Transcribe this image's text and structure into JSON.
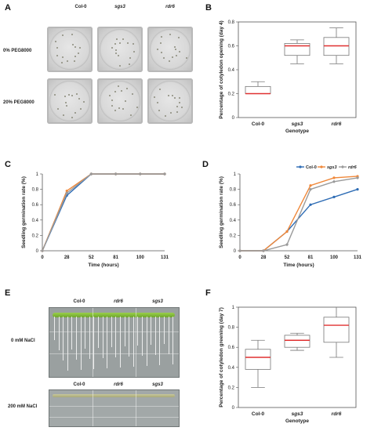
{
  "panels": {
    "A": {
      "letter": "A",
      "col_labels": [
        "Col-0",
        "sgs3",
        "rdr6"
      ],
      "row_labels": [
        "0% PEG8000",
        "20% PEG8000"
      ]
    },
    "B": {
      "letter": "B"
    },
    "C": {
      "letter": "C"
    },
    "D": {
      "letter": "D"
    },
    "E": {
      "letter": "E",
      "col_labels": [
        "Col-0",
        "rdr6",
        "sgs3"
      ],
      "row_labels": [
        "0 mM NaCl",
        "200 mM NaCl"
      ]
    },
    "F": {
      "letter": "F"
    }
  },
  "chart_data": [
    {
      "id": "B",
      "type": "box",
      "ylabel": "Percentage of cotyledon opening (day 4)",
      "xlabel": "Genotype",
      "categories": [
        "Col-0",
        "sgs3",
        "rdr6"
      ],
      "italic_categories": [
        "sgs3",
        "rdr6"
      ],
      "ylim": [
        0,
        0.8
      ],
      "yticks": [
        "0",
        "0.2",
        "0.4",
        "0.6",
        "0.8"
      ],
      "boxes": [
        {
          "min": 0.2,
          "q1": 0.2,
          "median": 0.2,
          "q3": 0.26,
          "max": 0.3
        },
        {
          "min": 0.45,
          "q1": 0.52,
          "median": 0.6,
          "q3": 0.62,
          "max": 0.65
        },
        {
          "min": 0.45,
          "q1": 0.52,
          "median": 0.6,
          "q3": 0.67,
          "max": 0.75
        }
      ],
      "median_color": "#e03030"
    },
    {
      "id": "C",
      "type": "line",
      "ylabel": "Seedling germination rate (%)",
      "xlabel": "Time (hours)",
      "x": [
        "0",
        "28",
        "52",
        "81",
        "100",
        "131"
      ],
      "ylim": [
        0,
        1
      ],
      "yticks": [
        "0",
        "0.2",
        "0.4",
        "0.6",
        "0.8",
        "1"
      ],
      "series": [
        {
          "color": "#2f6db5",
          "values": [
            0,
            0.72,
            1,
            1,
            1,
            1
          ]
        },
        {
          "color": "#f0883a",
          "values": [
            0,
            0.78,
            1,
            1,
            1,
            1
          ]
        },
        {
          "color": "#9a9a9a",
          "values": [
            0,
            0.75,
            1,
            1,
            1,
            1
          ]
        }
      ]
    },
    {
      "id": "D",
      "type": "line",
      "ylabel": "Seedling germination rate (%)",
      "xlabel": "Time (hours)",
      "x": [
        "0",
        "28",
        "52",
        "81",
        "100",
        "131"
      ],
      "ylim": [
        0,
        1
      ],
      "yticks": [
        "0",
        "0.2",
        "0.4",
        "0.6",
        "0.8",
        "1"
      ],
      "legend_position": "top-right",
      "series": [
        {
          "name": "Col-0",
          "color": "#2f6db5",
          "values": [
            0,
            0,
            0.25,
            0.6,
            0.7,
            0.8
          ]
        },
        {
          "name": "sgs3",
          "color": "#f0883a",
          "values": [
            0,
            0,
            0.25,
            0.85,
            0.95,
            0.97
          ]
        },
        {
          "name": "rdr6",
          "color": "#9a9a9a",
          "values": [
            0,
            0,
            0.08,
            0.8,
            0.9,
            0.95
          ]
        }
      ]
    },
    {
      "id": "F",
      "type": "box",
      "ylabel": "Percentage of cotyledon greening (day 7)",
      "xlabel": "Genotype",
      "categories": [
        "Col-0",
        "sgs3",
        "rdr6"
      ],
      "italic_categories": [
        "sgs3",
        "rdr6"
      ],
      "ylim": [
        0,
        1
      ],
      "yticks": [
        "0",
        "0.2",
        "0.4",
        "0.6",
        "0.8",
        "1"
      ],
      "boxes": [
        {
          "min": 0.2,
          "q1": 0.38,
          "median": 0.5,
          "q3": 0.58,
          "max": 0.67
        },
        {
          "min": 0.57,
          "q1": 0.6,
          "median": 0.67,
          "q3": 0.72,
          "max": 0.74
        },
        {
          "min": 0.5,
          "q1": 0.65,
          "median": 0.82,
          "q3": 0.9,
          "max": 1.0
        }
      ],
      "median_color": "#e03030"
    }
  ]
}
